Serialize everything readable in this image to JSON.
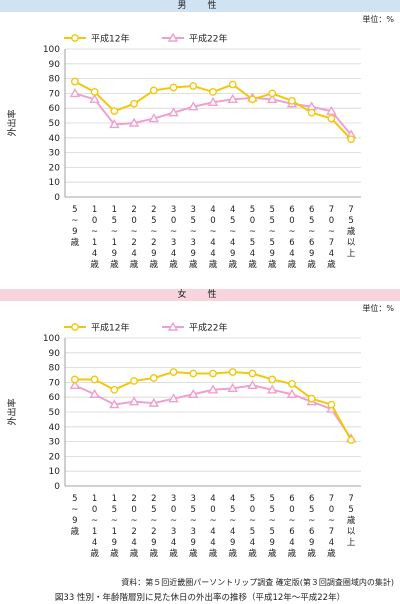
{
  "panels": [
    {
      "banner": "男　性",
      "unit": "単位：%"
    },
    {
      "banner": "女　性",
      "unit": "単位：%"
    }
  ],
  "source": "資料：第５回近畿圏パーソントリップ調査 確定版(第３回調査圏域内の集計)",
  "caption": "図33 性別・年齢階層別に見た休日の外出率の推移（平成12年〜平成22年）",
  "colors": {
    "h12": "#f2c80f",
    "h22": "#f0a0d0"
  },
  "chart_data": [
    {
      "type": "line",
      "title": "男　性",
      "ylabel": "外出率",
      "ylim": [
        0,
        100
      ],
      "yticks": [
        0,
        10,
        20,
        30,
        40,
        50,
        60,
        70,
        80,
        90,
        100
      ],
      "grid": true,
      "legend_position": "top",
      "categories": [
        "5~9歳",
        "10~14歳",
        "15~19歳",
        "20~24歳",
        "25~29歳",
        "30~34歳",
        "35~39歳",
        "40~44歳",
        "45~49歳",
        "50~54歳",
        "55~59歳",
        "60~64歳",
        "65~69歳",
        "70~74歳",
        "75歳以上"
      ],
      "series": [
        {
          "name": "平成12年",
          "values": [
            78,
            71,
            58,
            63,
            72,
            74,
            75,
            71,
            76,
            66,
            70,
            65,
            57,
            53,
            39
          ]
        },
        {
          "name": "平成22年",
          "values": [
            70,
            66,
            49,
            50,
            53,
            57,
            61,
            64,
            66,
            67,
            66,
            63,
            61,
            58,
            42
          ]
        }
      ]
    },
    {
      "type": "line",
      "title": "女　性",
      "ylabel": "外出率",
      "ylim": [
        0,
        100
      ],
      "yticks": [
        0,
        10,
        20,
        30,
        40,
        50,
        60,
        70,
        80,
        90,
        100
      ],
      "grid": true,
      "legend_position": "top",
      "categories": [
        "5~9歳",
        "10~14歳",
        "15~19歳",
        "20~24歳",
        "25~29歳",
        "30~34歳",
        "35~39歳",
        "40~44歳",
        "45~49歳",
        "50~54歳",
        "55~59歳",
        "60~64歳",
        "65~69歳",
        "70~74歳",
        "75歳以上"
      ],
      "series": [
        {
          "name": "平成12年",
          "values": [
            72,
            72,
            65,
            71,
            73,
            77,
            76,
            76,
            77,
            76,
            72,
            69,
            59,
            55,
            31
          ]
        },
        {
          "name": "平成22年",
          "values": [
            68,
            62,
            55,
            57,
            56,
            59,
            62,
            65,
            66,
            68,
            65,
            62,
            57,
            52,
            32
          ]
        }
      ]
    }
  ]
}
